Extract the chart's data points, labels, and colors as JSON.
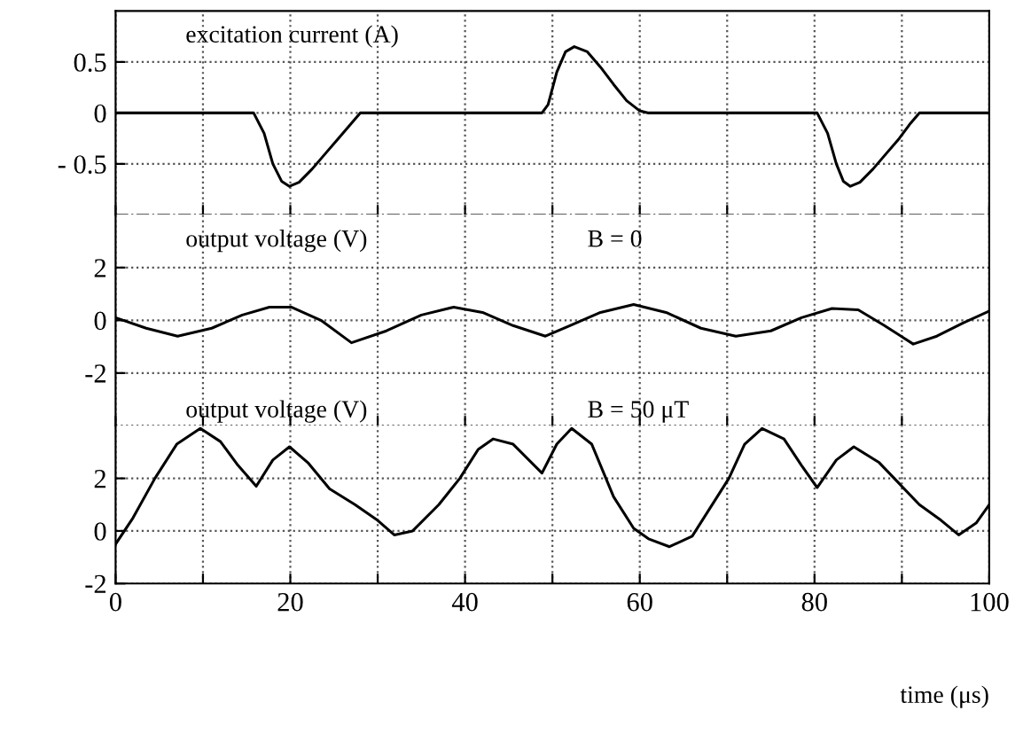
{
  "chart_data": [
    {
      "type": "line",
      "title": "excitation current (A)",
      "xlim": [
        0,
        100
      ],
      "ylim": [
        -1,
        1
      ],
      "xticks": [
        {
          "value": 0,
          "label": null
        },
        {
          "value": 10,
          "label": null
        },
        {
          "value": 20,
          "label": null
        },
        {
          "value": 30,
          "label": null
        },
        {
          "value": 40,
          "label": null
        },
        {
          "value": 50,
          "label": null
        },
        {
          "value": 60,
          "label": null
        },
        {
          "value": 70,
          "label": null
        },
        {
          "value": 80,
          "label": null
        },
        {
          "value": 90,
          "label": null
        },
        {
          "value": 100,
          "label": null
        }
      ],
      "yticks": [
        0.5,
        0,
        {
          "value": -0.5,
          "label": "- 0.5"
        }
      ],
      "tick_labels": "y",
      "grid": true,
      "series": [
        {
          "color": "#000000",
          "x": [
            0,
            15.8,
            17,
            18,
            19,
            19.9,
            21,
            22.5,
            24,
            25.5,
            27,
            28,
            48.8,
            49.5,
            50.5,
            51.5,
            52.5,
            54,
            55.5,
            57,
            58.5,
            60,
            61,
            80.3,
            81.5,
            82.5,
            83.3,
            84.1,
            85.2,
            86.7,
            88.2,
            89.7,
            91,
            92,
            100
          ],
          "values": [
            0,
            0,
            -0.2,
            -0.5,
            -0.67,
            -0.72,
            -0.68,
            -0.55,
            -0.4,
            -0.25,
            -0.1,
            0,
            0,
            0.08,
            0.4,
            0.6,
            0.65,
            0.6,
            0.45,
            0.28,
            0.12,
            0.02,
            0,
            0,
            -0.2,
            -0.5,
            -0.67,
            -0.72,
            -0.68,
            -0.55,
            -0.4,
            -0.25,
            -0.1,
            0,
            0
          ]
        }
      ]
    },
    {
      "type": "line",
      "title": "output voltage (V)",
      "annotations": [
        "B = 0"
      ],
      "xlim": [
        0,
        100
      ],
      "ylim": [
        -4,
        4
      ],
      "xticks": [
        {
          "value": 0,
          "label": null
        },
        {
          "value": 10,
          "label": null
        },
        {
          "value": 20,
          "label": null
        },
        {
          "value": 30,
          "label": null
        },
        {
          "value": 40,
          "label": null
        },
        {
          "value": 50,
          "label": null
        },
        {
          "value": 60,
          "label": null
        },
        {
          "value": 70,
          "label": null
        },
        {
          "value": 80,
          "label": null
        },
        {
          "value": 90,
          "label": null
        },
        {
          "value": 100,
          "label": null
        }
      ],
      "yticks": [
        2,
        0,
        -2
      ],
      "tick_labels": "y",
      "grid": true,
      "series": [
        {
          "color": "#000000",
          "x": [
            0,
            3.5,
            7.1,
            11,
            14.5,
            17.6,
            20.1,
            23.5,
            27,
            31,
            35,
            38.7,
            42,
            45.5,
            49.2,
            52,
            55.5,
            59.3,
            63,
            67,
            71,
            75,
            78.5,
            82,
            85,
            88,
            91.3,
            94,
            97,
            100
          ],
          "values": [
            0.1,
            -0.3,
            -0.6,
            -0.3,
            0.2,
            0.5,
            0.5,
            0,
            -0.85,
            -0.4,
            0.2,
            0.5,
            0.3,
            -0.2,
            -0.6,
            -0.2,
            0.3,
            0.6,
            0.3,
            -0.3,
            -0.6,
            -0.4,
            0.1,
            0.45,
            0.4,
            -0.2,
            -0.9,
            -0.6,
            -0.1,
            0.35
          ]
        }
      ]
    },
    {
      "type": "line",
      "title": "output voltage (V)",
      "annotations": [
        "B = 50 μT"
      ],
      "xlabel": "time (μs)",
      "xlim": [
        0,
        100
      ],
      "ylim": [
        -2,
        4
      ],
      "xticks": [
        0,
        {
          "value": 10,
          "label": null
        },
        20,
        {
          "value": 30,
          "label": null
        },
        40,
        {
          "value": 50,
          "label": null
        },
        60,
        {
          "value": 70,
          "label": null
        },
        80,
        {
          "value": 90,
          "label": null
        },
        100
      ],
      "yticks": [
        2,
        0,
        -2
      ],
      "grid": true,
      "series": [
        {
          "color": "#000000",
          "x": [
            0,
            2,
            4.5,
            7,
            9.7,
            12,
            14,
            16.1,
            18,
            19.9,
            22,
            24.5,
            27.4,
            30,
            31.9,
            34,
            37,
            39.4,
            41.5,
            43.2,
            45.5,
            48.8,
            50.5,
            52.2,
            54.5,
            57,
            59.3,
            61,
            63.4,
            66,
            70.2,
            72,
            74,
            76.5,
            78.5,
            80.3,
            82.5,
            84.5,
            87.4,
            92,
            94.5,
            96.5,
            98.5,
            100
          ],
          "values": [
            -0.5,
            0.5,
            2,
            3.3,
            3.9,
            3.4,
            2.5,
            1.7,
            2.7,
            3.2,
            2.6,
            1.6,
            1.0,
            0.4,
            -0.15,
            0,
            1.0,
            2,
            3.1,
            3.5,
            3.3,
            2.2,
            3.3,
            3.9,
            3.3,
            1.3,
            0.1,
            -0.3,
            -0.6,
            -0.2,
            2,
            3.3,
            3.9,
            3.5,
            2.5,
            1.65,
            2.7,
            3.2,
            2.6,
            1.0,
            0.4,
            -0.15,
            0.3,
            1.0
          ]
        }
      ]
    }
  ]
}
